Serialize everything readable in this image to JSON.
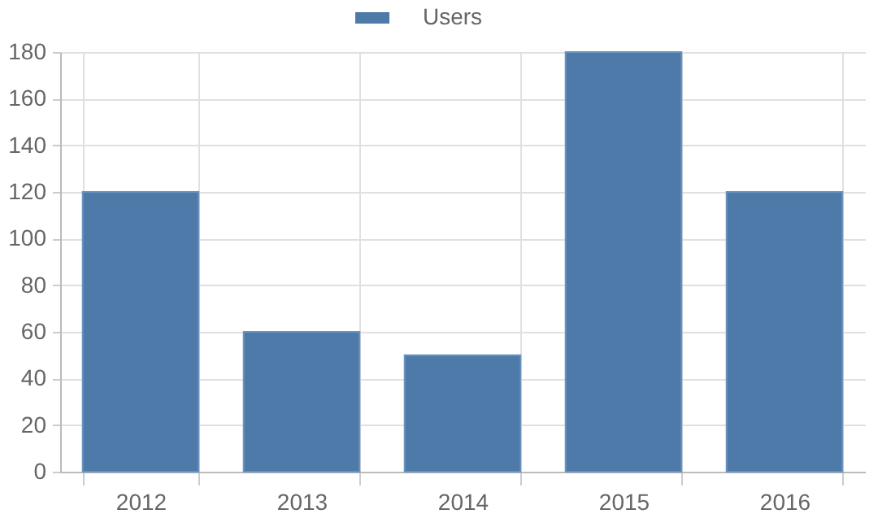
{
  "chart_data": {
    "type": "bar",
    "categories": [
      "2012",
      "2013",
      "2014",
      "2015",
      "2016"
    ],
    "series": [
      {
        "name": "Users",
        "color": "#4d7aa8",
        "values": [
          120,
          60,
          50,
          180,
          120
        ]
      }
    ],
    "ylim": [
      0,
      180
    ],
    "yticks": [
      0,
      20,
      40,
      60,
      80,
      100,
      120,
      140,
      160,
      180
    ],
    "grid": true,
    "legend": "top"
  }
}
